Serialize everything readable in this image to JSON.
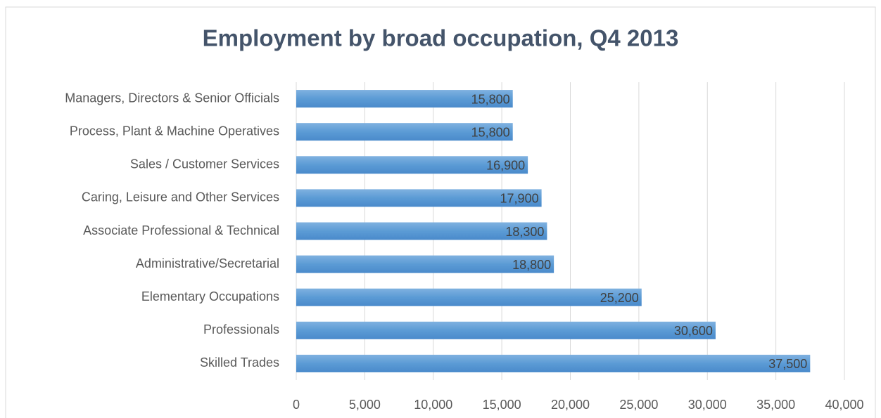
{
  "chart_data": {
    "type": "bar",
    "orientation": "horizontal",
    "title": "Employment by broad occupation, Q4 2013",
    "categories": [
      "Managers, Directors & Senior Officials",
      "Process, Plant & Machine Operatives",
      "Sales / Customer Services",
      "Caring, Leisure and Other Services",
      "Associate Professional & Technical",
      "Administrative/Secretarial",
      "Elementary Occupations",
      "Professionals",
      "Skilled Trades"
    ],
    "values": [
      15800,
      15800,
      16900,
      17900,
      18300,
      18800,
      25200,
      30600,
      37500
    ],
    "value_labels": [
      "15,800",
      "15,800",
      "16,900",
      "17,900",
      "18,300",
      "18,800",
      "25,200",
      "30,600",
      "37,500"
    ],
    "color": "#5b9bd5",
    "xlim": [
      0,
      40000
    ],
    "xticks": [
      0,
      {
        "value": 5000,
        "label": "5,000"
      },
      {
        "value": 10000,
        "label": "10,000"
      },
      {
        "value": 15000,
        "label": "15,000"
      },
      {
        "value": 20000,
        "label": "20,000"
      },
      {
        "value": 25000,
        "label": "25,000"
      },
      {
        "value": 30000,
        "label": "30,000"
      },
      {
        "value": 35000,
        "label": "35,000"
      },
      {
        "value": 40000,
        "label": "40,000"
      }
    ],
    "grid": true
  }
}
